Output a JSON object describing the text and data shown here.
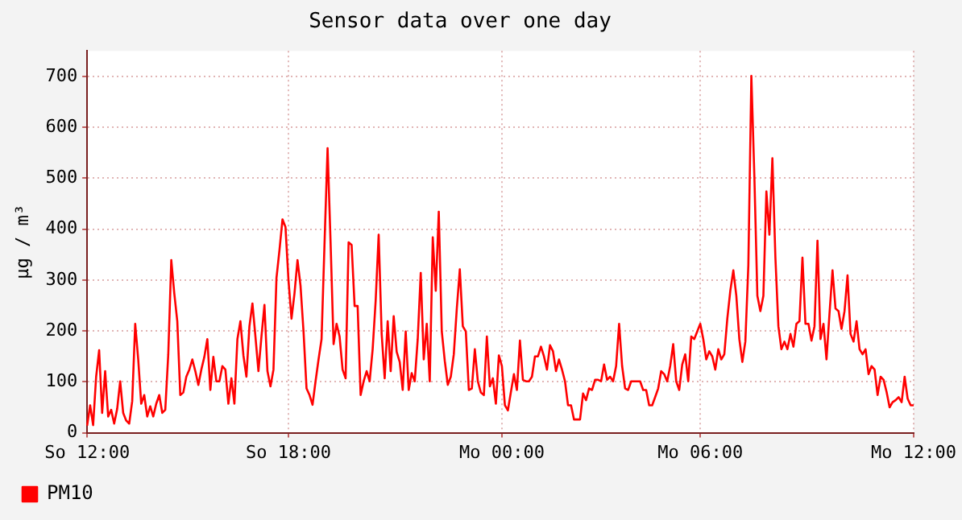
{
  "chart_data": {
    "type": "line",
    "title": "Sensor data over one day",
    "ylabel": "µg / m³",
    "ylim": [
      0,
      750
    ],
    "yticks": [
      0,
      100,
      200,
      300,
      400,
      500,
      600,
      700
    ],
    "grid": true,
    "legend": "bottom left",
    "marker": "none",
    "line_style": "solid",
    "categories": [
      "So 12:00",
      null,
      null,
      null,
      null,
      null,
      null,
      null,
      null,
      null,
      null,
      null,
      null,
      null,
      null,
      null,
      null,
      null,
      null,
      null,
      null,
      null,
      null,
      null,
      null,
      null,
      null,
      null,
      null,
      null,
      null,
      null,
      null,
      null,
      null,
      null,
      null,
      null,
      null,
      null,
      null,
      null,
      null,
      null,
      null,
      null,
      null,
      null,
      null,
      null,
      null,
      null,
      null,
      null,
      null,
      null,
      null,
      null,
      null,
      null,
      null,
      null,
      null,
      null,
      null,
      null,
      null,
      "So 18:00",
      null,
      null,
      null,
      null,
      null,
      null,
      null,
      null,
      null,
      null,
      null,
      null,
      null,
      null,
      null,
      null,
      null,
      null,
      null,
      null,
      null,
      null,
      null,
      null,
      null,
      null,
      null,
      null,
      null,
      null,
      null,
      null,
      null,
      null,
      null,
      null,
      null,
      null,
      null,
      null,
      null,
      null,
      null,
      null,
      null,
      null,
      null,
      null,
      null,
      null,
      null,
      null,
      null,
      null,
      null,
      null,
      null,
      null,
      null,
      null,
      null,
      null,
      null,
      null,
      null,
      null,
      null,
      null,
      null,
      null,
      "Mo 00:00",
      null,
      null,
      null,
      null,
      null,
      null,
      null,
      null,
      null,
      null,
      null,
      null,
      null,
      null,
      null,
      null,
      null,
      null,
      null,
      null,
      null,
      null,
      null,
      null,
      null,
      null,
      null,
      null,
      null,
      null,
      null,
      null,
      null,
      null,
      null,
      null,
      null,
      null,
      null,
      null,
      null,
      null,
      null,
      null,
      null,
      null,
      null,
      null,
      null,
      null,
      null,
      null,
      null,
      null,
      null,
      null,
      null,
      null,
      null,
      null,
      null,
      null,
      null,
      null,
      null,
      "Mo 06:00",
      null,
      null,
      null,
      null,
      null,
      null,
      null,
      null,
      null,
      null,
      null,
      null,
      null,
      null,
      null,
      null,
      null,
      null,
      null,
      null,
      null,
      null,
      null,
      null,
      null,
      null,
      null,
      null,
      null,
      null,
      null,
      null,
      null,
      null,
      null,
      null,
      null,
      null,
      null,
      null,
      null,
      null,
      null,
      null,
      null,
      null,
      null,
      null,
      null,
      null,
      null,
      null,
      null,
      null,
      null,
      null,
      null,
      null,
      null,
      null,
      null,
      null,
      null,
      null,
      null,
      null,
      null,
      null,
      null,
      null,
      "Mo 12:00"
    ],
    "series": [
      {
        "name": "PM10",
        "color": "#ff0000",
        "values": [
          14,
          54,
          15,
          110,
          162,
          39,
          121,
          32,
          45,
          18,
          47,
          101,
          39,
          24,
          18,
          62,
          214,
          144,
          57,
          74,
          32,
          52,
          32,
          57,
          74,
          39,
          45,
          154,
          339,
          274,
          219,
          74,
          79,
          110,
          124,
          144,
          121,
          94,
          124,
          149,
          184,
          84,
          149,
          101,
          101,
          131,
          124,
          57,
          107,
          57,
          184,
          219,
          152,
          110,
          209,
          254,
          189,
          121,
          189,
          251,
          121,
          91,
          124,
          304,
          359,
          419,
          404,
          299,
          224,
          274,
          339,
          289,
          199,
          87,
          74,
          55,
          101,
          144,
          184,
          374,
          559,
          374,
          174,
          214,
          189,
          124,
          107,
          374,
          369,
          249,
          249,
          74,
          101,
          121,
          101,
          164,
          259,
          389,
          194,
          107,
          219,
          121,
          229,
          159,
          139,
          84,
          199,
          84,
          117,
          101,
          184,
          314,
          144,
          214,
          101,
          384,
          279,
          434,
          199,
          141,
          94,
          110,
          154,
          244,
          321,
          209,
          199,
          84,
          87,
          164,
          101,
          79,
          74,
          189,
          91,
          107,
          57,
          152,
          131,
          54,
          44,
          80,
          115,
          84,
          181,
          104,
          101,
          101,
          110,
          150,
          150,
          169,
          150,
          124,
          172,
          160,
          121,
          144,
          124,
          101,
          54,
          54,
          26,
          26,
          26,
          77,
          64,
          87,
          84,
          104,
          104,
          101,
          134,
          104,
          110,
          101,
          131,
          214,
          131,
          87,
          84,
          101,
          101,
          101,
          101,
          84,
          84,
          54,
          54,
          70,
          87,
          121,
          115,
          101,
          131,
          174,
          101,
          84,
          134,
          154,
          101,
          189,
          184,
          199,
          214,
          184,
          144,
          160,
          150,
          124,
          164,
          144,
          154,
          224,
          279,
          319,
          269,
          184,
          139,
          179,
          329,
          701,
          504,
          269,
          239,
          269,
          474,
          389,
          539,
          344,
          209,
          164,
          179,
          164,
          194,
          169,
          214,
          219,
          344,
          214,
          214,
          181,
          209,
          377,
          184,
          214,
          144,
          234,
          319,
          244,
          239,
          204,
          239,
          309,
          194,
          179,
          219,
          164,
          154,
          164,
          115,
          131,
          124,
          74,
          110,
          104,
          80,
          50,
          60,
          64,
          70,
          60,
          110,
          67,
          54,
          54
        ]
      }
    ]
  }
}
